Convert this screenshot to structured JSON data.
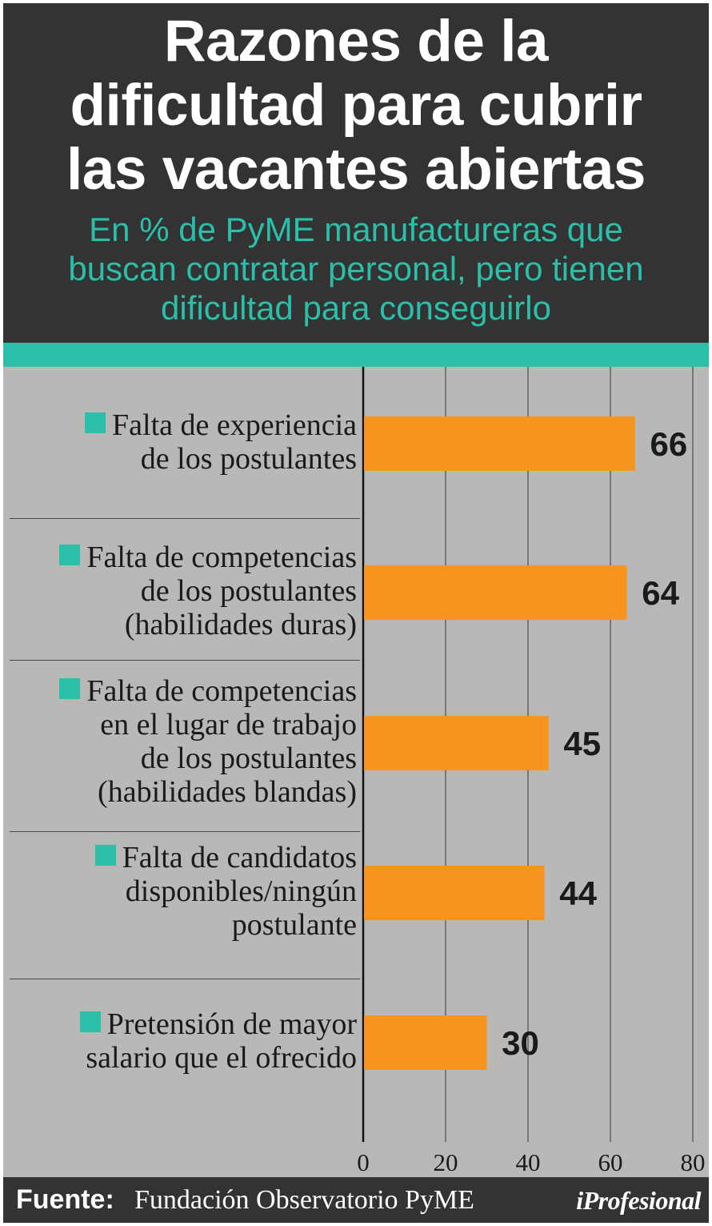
{
  "chart_data": {
    "type": "bar",
    "orientation": "horizontal",
    "title": "Razones de la dificultad para cubrir las vacantes abiertas",
    "subtitle": "En % de PyME manufactureras que buscan contratar personal, pero tienen dificultad para conseguirlo",
    "title_lines": [
      "Razones de la",
      "dificultad para cubrir",
      "las vacantes abiertas"
    ],
    "subtitle_lines": [
      "En % de PyME manufactureras que",
      "buscan contratar personal, pero tienen",
      "dificultad para conseguirlo"
    ],
    "categories": [
      [
        "Falta de experiencia",
        "de los postulantes"
      ],
      [
        "Falta de competencias",
        "de los postulantes",
        "(habilidades duras)"
      ],
      [
        "Falta de competencias",
        "en el lugar de trabajo",
        "de los postulantes",
        "(habilidades blandas)"
      ],
      [
        "Falta de candidatos",
        "disponibles/ningún",
        "postulante"
      ],
      [
        "Pretensión de mayor",
        "salario que el ofrecido"
      ]
    ],
    "values": [
      66,
      64,
      45,
      44,
      30
    ],
    "xlim": [
      0,
      80
    ],
    "ticks": [
      0,
      20,
      40,
      60,
      80
    ],
    "tick_labels": [
      "0",
      "20",
      "40",
      "60",
      "80"
    ],
    "grid": true,
    "bar_color": "#f7941d",
    "marker_color": "#2bbfaa"
  },
  "footer": {
    "source_label": "Fuente:",
    "source_text": "Fundación Observatorio PyME",
    "brand": "iProfesional"
  }
}
